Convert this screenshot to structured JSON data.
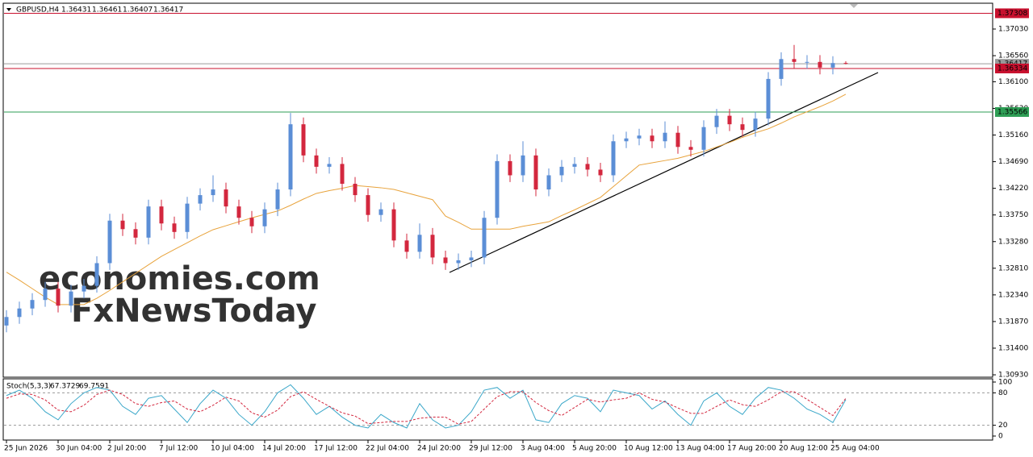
{
  "chart_data": {
    "type": "candlestick",
    "title": "GBPUSD,H4",
    "up_color": "#5b8ed6",
    "down_color": "#d3273e",
    "categories": [
      "25 Jun 2026",
      null,
      null,
      null,
      "30 Jun 04:00",
      null,
      null,
      null,
      "2 Jul 20:00",
      null,
      null,
      null,
      "7 Jul 12:00",
      null,
      null,
      null,
      "10 Jul 04:00",
      null,
      null,
      null,
      "14 Jul 20:00",
      null,
      null,
      null,
      "17 Jul 12:00",
      null,
      null,
      null,
      "22 Jul 04:00",
      null,
      null,
      null,
      "24 Jul 20:00",
      null,
      null,
      null,
      "29 Jul 12:00",
      null,
      null,
      null,
      "3 Aug 04:00",
      null,
      null,
      null,
      "5 Aug 20:00",
      null,
      null,
      null,
      "10 Aug 12:00",
      null,
      null,
      null,
      "13 Aug 04:00",
      null,
      null,
      null,
      "17 Aug 20:00",
      null,
      null,
      null,
      "20 Aug 12:00",
      null,
      null,
      null,
      "25 Aug 04:00",
      null
    ],
    "open": [
      1.318,
      1.3195,
      1.321,
      1.3225,
      1.3245,
      1.3215,
      1.324,
      1.325,
      1.329,
      1.3365,
      1.335,
      1.3335,
      1.339,
      1.336,
      1.3345,
      1.3395,
      1.341,
      1.342,
      1.339,
      1.337,
      1.3355,
      1.3385,
      1.342,
      1.3535,
      1.348,
      1.346,
      1.3465,
      1.343,
      1.341,
      1.3375,
      1.3385,
      1.333,
      1.331,
      1.334,
      1.33,
      1.329,
      1.3295,
      1.33,
      1.337,
      1.347,
      1.3445,
      1.348,
      1.342,
      1.3445,
      1.346,
      1.3465,
      1.3455,
      1.3445,
      1.3505,
      1.351,
      1.3515,
      1.3505,
      1.352,
      1.3495,
      1.349,
      1.353,
      1.355,
      1.3535,
      1.3525,
      1.3545,
      1.3615,
      1.365,
      1.3645,
      1.3645,
      1.3635,
      1.36431
    ],
    "high": [
      1.3207,
      1.3222,
      1.3237,
      1.3257,
      1.3257,
      1.3252,
      1.3262,
      1.3302,
      1.3377,
      1.3377,
      1.3362,
      1.3402,
      1.3402,
      1.3372,
      1.3407,
      1.3422,
      1.3445,
      1.3432,
      1.3402,
      1.3382,
      1.3397,
      1.3432,
      1.3555,
      1.3547,
      1.3492,
      1.3477,
      1.3477,
      1.3442,
      1.3422,
      1.3397,
      1.3397,
      1.3342,
      1.336,
      1.3352,
      1.3312,
      1.3307,
      1.3312,
      1.3382,
      1.3482,
      1.3482,
      1.3505,
      1.3492,
      1.3457,
      1.3472,
      1.3477,
      1.3477,
      1.3467,
      1.3517,
      1.3522,
      1.3527,
      1.3527,
      1.354,
      1.3532,
      1.3507,
      1.3542,
      1.3562,
      1.3562,
      1.3547,
      1.3557,
      1.3627,
      1.3662,
      1.3675,
      1.3657,
      1.3657,
      1.3655,
      1.36461
    ],
    "low": [
      1.3168,
      1.3183,
      1.3198,
      1.3213,
      1.3203,
      1.3203,
      1.3228,
      1.3238,
      1.3278,
      1.3338,
      1.3323,
      1.3323,
      1.3348,
      1.3333,
      1.3333,
      1.3383,
      1.3398,
      1.3378,
      1.3358,
      1.3343,
      1.3343,
      1.3373,
      1.3408,
      1.3468,
      1.3448,
      1.3448,
      1.3418,
      1.3398,
      1.3363,
      1.3363,
      1.3318,
      1.3298,
      1.3298,
      1.3288,
      1.3278,
      1.3278,
      1.3283,
      1.3288,
      1.3358,
      1.3433,
      1.3433,
      1.3408,
      1.3408,
      1.3433,
      1.3448,
      1.3443,
      1.3433,
      1.3433,
      1.3493,
      1.3498,
      1.3493,
      1.3493,
      1.3483,
      1.3478,
      1.3478,
      1.3518,
      1.3523,
      1.3513,
      1.3513,
      1.3533,
      1.3603,
      1.3633,
      1.3633,
      1.3623,
      1.3623,
      1.36407
    ],
    "close": [
      1.3195,
      1.321,
      1.3225,
      1.3245,
      1.3215,
      1.324,
      1.325,
      1.329,
      1.3365,
      1.335,
      1.3335,
      1.339,
      1.336,
      1.3345,
      1.3395,
      1.341,
      1.342,
      1.339,
      1.337,
      1.3355,
      1.3385,
      1.342,
      1.3535,
      1.348,
      1.346,
      1.3465,
      1.343,
      1.341,
      1.3375,
      1.3385,
      1.333,
      1.331,
      1.334,
      1.33,
      1.329,
      1.3295,
      1.33,
      1.337,
      1.347,
      1.3445,
      1.348,
      1.342,
      1.3445,
      1.346,
      1.3465,
      1.3455,
      1.3445,
      1.3505,
      1.351,
      1.3515,
      1.3505,
      1.352,
      1.3495,
      1.349,
      1.353,
      1.355,
      1.3535,
      1.3525,
      1.3545,
      1.3615,
      1.365,
      1.3645,
      1.3645,
      1.3635,
      1.3643,
      1.36417
    ],
    "ma": {
      "color": "#e8a33c",
      "values": [
        1.3274,
        1.326,
        1.3245,
        1.323,
        1.3217,
        1.3217,
        1.3217,
        1.3228,
        1.3242,
        1.3257,
        1.3272,
        1.3287,
        1.3302,
        1.3314,
        1.3326,
        1.3338,
        1.3349,
        1.3356,
        1.3363,
        1.337,
        1.3376,
        1.3382,
        1.3392,
        1.3403,
        1.3413,
        1.3418,
        1.3422,
        1.3427,
        1.3425,
        1.3423,
        1.342,
        1.3414,
        1.3408,
        1.3402,
        1.3373,
        1.3362,
        1.335,
        1.335,
        1.335,
        1.335,
        1.3355,
        1.3359,
        1.3363,
        1.3374,
        1.3384,
        1.3395,
        1.3406,
        1.3425,
        1.3444,
        1.3463,
        1.3467,
        1.3471,
        1.3475,
        1.3481,
        1.3487,
        1.3495,
        1.3503,
        1.3512,
        1.352,
        1.3527,
        1.3537,
        1.3548,
        1.3557,
        1.3566,
        1.3576,
        1.3588
      ]
    },
    "levels": [
      {
        "value": 1.37308,
        "color": "#c8102e"
      },
      {
        "value": 1.36417,
        "color": "#9a9a9a"
      },
      {
        "value": 1.36334,
        "color": "#c8102e"
      },
      {
        "value": 1.35566,
        "color": "#2e9e55"
      }
    ],
    "ylim": [
      1.30902,
      1.37471
    ],
    "yticks": [
      {
        "value": 1.3703,
        "label": "1.37030"
      },
      {
        "value": 1.3656,
        "label": "1.36560"
      },
      {
        "value": 1.361,
        "label": "1.36100"
      },
      {
        "value": 1.3563,
        "label": "1.35630"
      },
      {
        "value": 1.3516,
        "label": "1.35160"
      },
      {
        "value": 1.3469,
        "label": "1.34690"
      },
      {
        "value": 1.3422,
        "label": "1.34220"
      },
      {
        "value": 1.3375,
        "label": "1.33750"
      },
      {
        "value": 1.3328,
        "label": "1.33280"
      },
      {
        "value": 1.3281,
        "label": "1.32810"
      },
      {
        "value": 1.3234,
        "label": "1.32340"
      },
      {
        "value": 1.3187,
        "label": "1.31870"
      },
      {
        "value": 1.314,
        "label": "1.31400"
      },
      {
        "value": 1.3093,
        "label": "1.30930"
      }
    ],
    "watermarks": [
      "economies.com",
      "FxNewsToday"
    ],
    "indicator": {
      "title": "Stoch(5,3,3)",
      "k_color": "#3aa7c9",
      "d_color": "#d3273e",
      "k": [
        75,
        85,
        70,
        45,
        30,
        60,
        80,
        90,
        85,
        55,
        40,
        70,
        75,
        50,
        25,
        60,
        85,
        70,
        40,
        20,
        45,
        80,
        95,
        70,
        40,
        55,
        35,
        20,
        15,
        40,
        25,
        15,
        60,
        30,
        15,
        20,
        45,
        85,
        90,
        70,
        85,
        30,
        25,
        60,
        75,
        70,
        45,
        85,
        80,
        75,
        50,
        65,
        40,
        20,
        65,
        80,
        55,
        40,
        70,
        90,
        85,
        70,
        50,
        40,
        25,
        67.3729
      ],
      "d": [
        70,
        78,
        77,
        67,
        48,
        45,
        57,
        77,
        85,
        77,
        60,
        55,
        62,
        65,
        50,
        45,
        57,
        72,
        65,
        43,
        35,
        48,
        73,
        82,
        68,
        55,
        43,
        37,
        23,
        25,
        27,
        27,
        33,
        35,
        35,
        22,
        27,
        50,
        73,
        82,
        82,
        62,
        47,
        38,
        53,
        68,
        63,
        67,
        70,
        80,
        68,
        63,
        52,
        42,
        42,
        55,
        67,
        58,
        55,
        67,
        82,
        82,
        68,
        53,
        38,
        69.7591
      ],
      "ylim": [
        0,
        100
      ],
      "yticks": [
        0,
        20,
        80,
        100
      ],
      "levels": [
        20,
        80
      ]
    }
  }
}
